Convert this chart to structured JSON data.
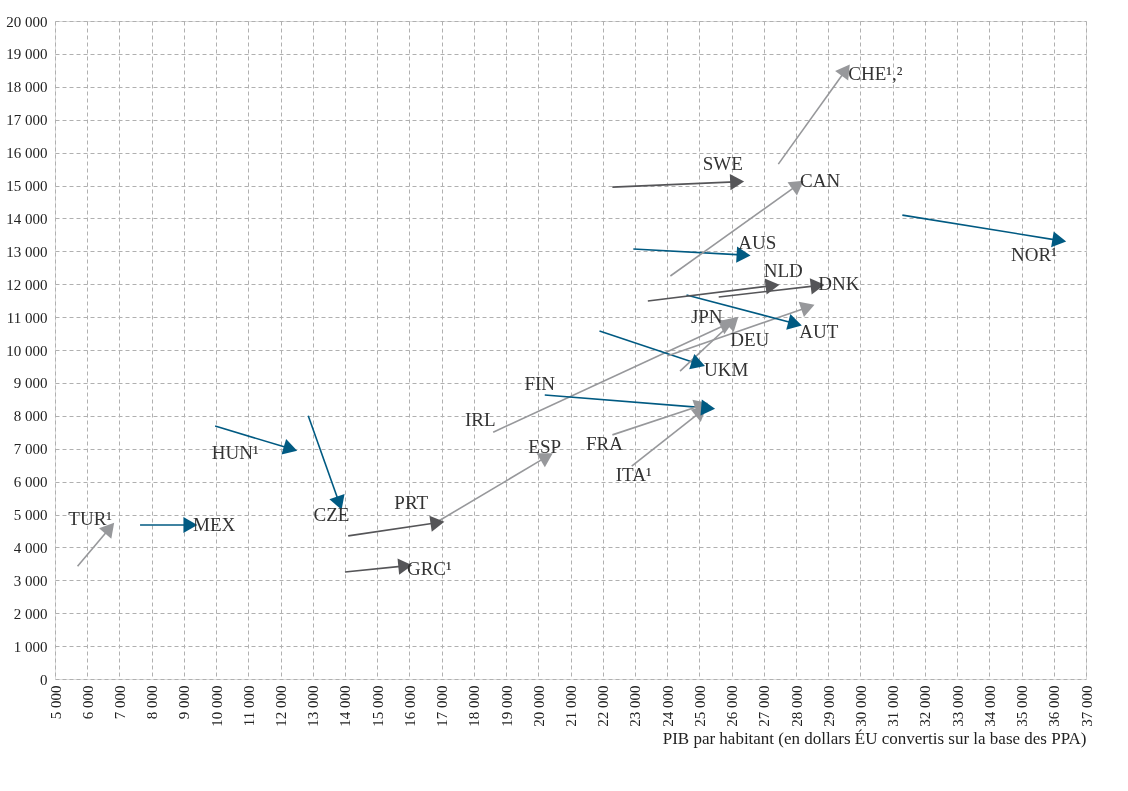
{
  "chart_data": {
    "type": "line",
    "xlabel": "PIB par habitant (en dollars ÉU convertis sur la base des PPA)",
    "xlim": [
      5000,
      37000
    ],
    "ylim": [
      0,
      20000
    ],
    "grid": true,
    "xticks": [
      {
        "value": 5000,
        "label": "5 000"
      },
      {
        "value": 6000,
        "label": "6 000"
      },
      {
        "value": 7000,
        "label": "7 000"
      },
      {
        "value": 8000,
        "label": "8 000"
      },
      {
        "value": 9000,
        "label": "9 000"
      },
      {
        "value": 10000,
        "label": "10 000"
      },
      {
        "value": 11000,
        "label": "11 000"
      },
      {
        "value": 12000,
        "label": "12 000"
      },
      {
        "value": 13000,
        "label": "13 000"
      },
      {
        "value": 14000,
        "label": "14 000"
      },
      {
        "value": 15000,
        "label": "15 000"
      },
      {
        "value": 16000,
        "label": "16 000"
      },
      {
        "value": 17000,
        "label": "17 000"
      },
      {
        "value": 18000,
        "label": "18 000"
      },
      {
        "value": 19000,
        "label": "19 000"
      },
      {
        "value": 20000,
        "label": "20 000"
      },
      {
        "value": 21000,
        "label": "21 000"
      },
      {
        "value": 22000,
        "label": "22 000"
      },
      {
        "value": 23000,
        "label": "23 000"
      },
      {
        "value": 24000,
        "label": "24 000"
      },
      {
        "value": 25000,
        "label": "25 000"
      },
      {
        "value": 26000,
        "label": "26 000"
      },
      {
        "value": 27000,
        "label": "27 000"
      },
      {
        "value": 28000,
        "label": "28 000"
      },
      {
        "value": 29000,
        "label": "29 000"
      },
      {
        "value": 30000,
        "label": "30 000"
      },
      {
        "value": 31000,
        "label": "31 000"
      },
      {
        "value": 32000,
        "label": "32 000"
      },
      {
        "value": 33000,
        "label": "33 000"
      },
      {
        "value": 34000,
        "label": "34 000"
      },
      {
        "value": 35000,
        "label": "35 000"
      },
      {
        "value": 36000,
        "label": "36 000"
      },
      {
        "value": 37000,
        "label": "37 000"
      }
    ],
    "yticks": [
      0,
      {
        "value": 1000,
        "label": "1 000"
      },
      {
        "value": 2000,
        "label": "2 000"
      },
      {
        "value": 3000,
        "label": "3 000"
      },
      {
        "value": 4000,
        "label": "4 000"
      },
      {
        "value": 5000,
        "label": "5 000"
      },
      {
        "value": 6000,
        "label": "6 000"
      },
      {
        "value": 7000,
        "label": "7 000"
      },
      {
        "value": 8000,
        "label": "8 000"
      },
      {
        "value": 9000,
        "label": "9 000"
      },
      {
        "value": 10000,
        "label": "10 000"
      },
      {
        "value": 11000,
        "label": "11 000"
      },
      {
        "value": 12000,
        "label": "12 000"
      },
      {
        "value": 13000,
        "label": "13 000"
      },
      {
        "value": 14000,
        "label": "14 000"
      },
      {
        "value": 15000,
        "label": "15 000"
      },
      {
        "value": 16000,
        "label": "16 000"
      },
      {
        "value": 17000,
        "label": "17 000"
      },
      {
        "value": 18000,
        "label": "18 000"
      },
      {
        "value": 19000,
        "label": "19 000"
      },
      {
        "value": 20000,
        "label": "20 000"
      }
    ],
    "series": [
      {
        "name": "TUR¹",
        "color": "#97989b",
        "x": [
          5700,
          6650
        ],
        "values": [
          3430,
          4530
        ]
      },
      {
        "name": "MEX",
        "color": "#005a82",
        "x": [
          7640,
          9130
        ],
        "values": [
          4680,
          4680
        ]
      },
      {
        "name": "HUN¹",
        "color": "#005a82",
        "x": [
          9970,
          12240
        ],
        "values": [
          7690,
          7020
        ]
      },
      {
        "name": "CZE",
        "color": "#005a82",
        "x": [
          12860,
          13800
        ],
        "values": [
          8000,
          5410
        ]
      },
      {
        "name": "PRT",
        "color": "#555558",
        "x": [
          14100,
          16800
        ],
        "values": [
          4350,
          4740
        ]
      },
      {
        "name": "GRC¹",
        "color": "#555558",
        "x": [
          14000,
          15800
        ],
        "values": [
          3250,
          3430
        ]
      },
      {
        "name": "ESP",
        "color": "#97989b",
        "x": [
          16800,
          20200
        ],
        "values": [
          4740,
          6720
        ]
      },
      {
        "name": "IRL",
        "color": "#97989b",
        "x": [
          18600,
          25800
        ],
        "values": [
          7500,
          10760
        ]
      },
      {
        "name": "FIN",
        "color": "#005a82",
        "x": [
          20200,
          25200
        ],
        "values": [
          8630,
          8240
        ]
      },
      {
        "name": "FRA",
        "color": "#97989b",
        "x": [
          22300,
          25000
        ],
        "values": [
          7420,
          8300
        ]
      },
      {
        "name": "ITA¹",
        "color": "#97989b",
        "x": [
          22900,
          25000
        ],
        "values": [
          6470,
          8090
        ]
      },
      {
        "name": "UKM",
        "color": "#005a82",
        "x": [
          21900,
          24900
        ],
        "values": [
          10580,
          9600
        ]
      },
      {
        "name": "JPN",
        "color": "#97989b",
        "x": [
          24400,
          26000
        ],
        "values": [
          9360,
          10820
        ]
      },
      {
        "name": "DEU",
        "color": "#97989b",
        "x": [
          24000,
          28300
        ],
        "values": [
          9820,
          11280
        ]
      },
      {
        "name": "AUT",
        "color": "#005a82",
        "x": [
          24600,
          27900
        ],
        "values": [
          11670,
          10820
        ]
      },
      {
        "name": "NLD",
        "color": "#555558",
        "x": [
          23400,
          27200
        ],
        "values": [
          11490,
          11950
        ]
      },
      {
        "name": "DNK",
        "color": "#555558",
        "x": [
          25600,
          28600
        ],
        "values": [
          11610,
          11950
        ]
      },
      {
        "name": "AUS",
        "color": "#005a82",
        "x": [
          22950,
          26300
        ],
        "values": [
          13070,
          12890
        ]
      },
      {
        "name": "SWE",
        "color": "#555558",
        "x": [
          22300,
          26100
        ],
        "values": [
          14950,
          15110
        ]
      },
      {
        "name": "CAN",
        "color": "#97989b",
        "x": [
          24100,
          28000
        ],
        "values": [
          12250,
          14980
        ]
      },
      {
        "name": "CHE¹,²",
        "color": "#97989b",
        "x": [
          27450,
          29500
        ],
        "values": [
          15650,
          18450
        ]
      },
      {
        "name": "NOR¹",
        "color": "#005a82",
        "x": [
          31300,
          36100
        ],
        "values": [
          14100,
          13340
        ]
      }
    ]
  }
}
